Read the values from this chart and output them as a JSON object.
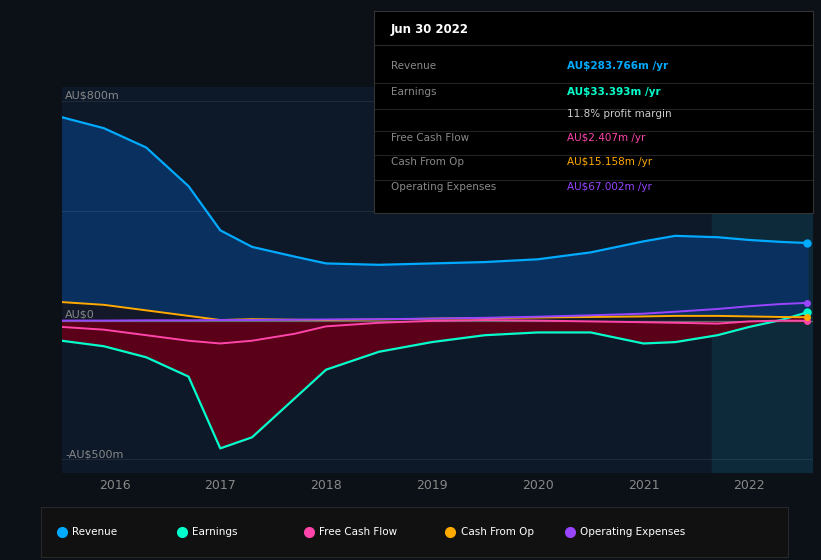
{
  "background_color": "#0c1117",
  "plot_bg_color": "#0d1828",
  "highlight_bg_color": "#0d2a3a",
  "ylabel_top": "AU$800m",
  "ylabel_zero": "AU$0",
  "ylabel_bottom": "-AU$500m",
  "x_labels": [
    "2016",
    "2017",
    "2018",
    "2019",
    "2020",
    "2021",
    "2022"
  ],
  "x_ticks": [
    2016,
    2017,
    2018,
    2019,
    2020,
    2021,
    2022
  ],
  "years": [
    2015.5,
    2015.9,
    2016.3,
    2016.7,
    2017.0,
    2017.3,
    2017.7,
    2018.0,
    2018.5,
    2019.0,
    2019.5,
    2020.0,
    2020.5,
    2021.0,
    2021.3,
    2021.7,
    2022.0,
    2022.3,
    2022.55
  ],
  "revenue": [
    740,
    700,
    630,
    490,
    330,
    270,
    235,
    210,
    205,
    210,
    215,
    225,
    250,
    290,
    310,
    305,
    295,
    288,
    284
  ],
  "earnings": [
    -70,
    -90,
    -130,
    -200,
    -460,
    -420,
    -280,
    -175,
    -110,
    -75,
    -50,
    -40,
    -40,
    -80,
    -75,
    -50,
    -20,
    5,
    33
  ],
  "free_cash_flow": [
    -20,
    -30,
    -50,
    -70,
    -80,
    -70,
    -45,
    -18,
    -5,
    2,
    5,
    3,
    0,
    -3,
    -5,
    -8,
    0,
    3,
    2.4
  ],
  "cash_from_op": [
    70,
    60,
    40,
    20,
    5,
    8,
    6,
    5,
    7,
    10,
    12,
    14,
    16,
    18,
    20,
    20,
    18,
    16,
    15
  ],
  "operating_expenses": [
    3,
    3,
    4,
    4,
    5,
    5,
    6,
    7,
    8,
    10,
    13,
    17,
    22,
    28,
    35,
    45,
    55,
    63,
    67
  ],
  "revenue_color": "#00aaff",
  "earnings_line_color": "#00ffcc",
  "earnings_fill_color": "#5a0018",
  "free_cash_flow_color": "#ff44aa",
  "cash_from_op_color": "#ffaa00",
  "operating_expenses_color": "#9944ff",
  "revenue_fill_color": "#0a3060",
  "cashfromop_fill_color": "#1a1a1a",
  "grid_color": "#ffffff18",
  "zero_line_color": "#666666",
  "ylim": [
    -550,
    850
  ],
  "xlim_start": 2015.5,
  "xlim_end": 2022.6,
  "highlight_x_start": 2021.65,
  "highlight_x_end": 2022.6,
  "title_date": "Jun 30 2022",
  "table_rows": [
    {
      "label": "Revenue",
      "value": "AU$283.766m /yr",
      "color": "#00aaff",
      "bold": true
    },
    {
      "label": "Earnings",
      "value": "AU$33.393m /yr",
      "color": "#00ffcc",
      "bold": true
    },
    {
      "label": "",
      "value": "11.8% profit margin",
      "color": "#cccccc",
      "bold": false
    },
    {
      "label": "Free Cash Flow",
      "value": "AU$2.407m /yr",
      "color": "#ff44aa",
      "bold": false
    },
    {
      "label": "Cash From Op",
      "value": "AU$15.158m /yr",
      "color": "#ffaa00",
      "bold": false
    },
    {
      "label": "Operating Expenses",
      "value": "AU$67.002m /yr",
      "color": "#9944ff",
      "bold": false
    }
  ],
  "legend_items": [
    {
      "label": "Revenue",
      "color": "#00aaff"
    },
    {
      "label": "Earnings",
      "color": "#00ffcc"
    },
    {
      "label": "Free Cash Flow",
      "color": "#ff44aa"
    },
    {
      "label": "Cash From Op",
      "color": "#ffaa00"
    },
    {
      "label": "Operating Expenses",
      "color": "#9944ff"
    }
  ]
}
